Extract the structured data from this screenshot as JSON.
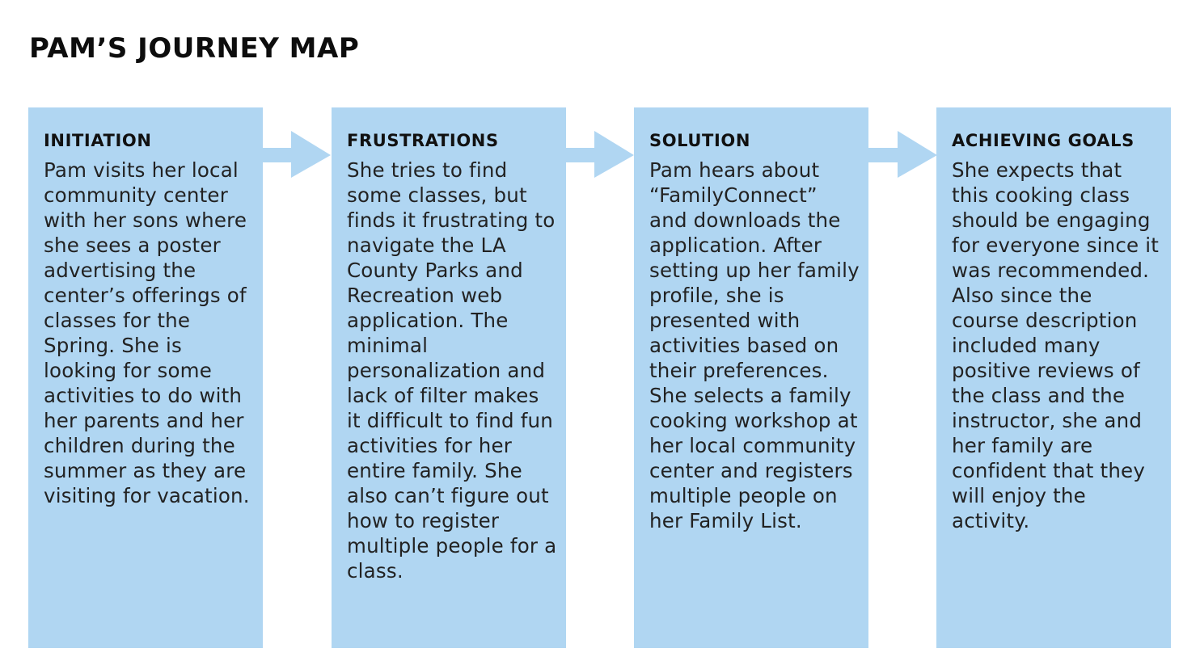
{
  "title": "PAM’S JOURNEY MAP",
  "colors": {
    "card_background": "#b0d6f2",
    "arrow": "#b0d6f2",
    "text": "#111111"
  },
  "stages": [
    {
      "heading": "INITIATION",
      "body": "Pam visits her local community center with her sons where she sees a poster advertising the center’s offerings of classes for the Spring. She is looking for some activities to do with her parents and her children during the summer as they are visiting for vacation."
    },
    {
      "heading": "FRUSTRATIONS",
      "body": "She tries to find some classes, but finds it frustrating to navigate the LA County Parks and Recreation web application. The minimal personalization and lack of filter makes it difficult to find fun activities for her entire family. She also can’t figure out how to register multiple people for a class."
    },
    {
      "heading": "SOLUTION",
      "body": "Pam hears about “FamilyConnect” and downloads the application. After setting up her family profile, she is presented with  activities based on their preferences. She selects a family cooking workshop at her local community center and registers multiple people on her Family List."
    },
    {
      "heading": "ACHIEVING GOALS",
      "body": "She expects that this cooking class should be engaging for everyone since it was recommended. Also since the course description included many positive reviews of the class and the instructor, she and her family are confident that they will enjoy the activity."
    }
  ],
  "connectors": [
    {
      "icon": "right-arrow-icon"
    },
    {
      "icon": "right-arrow-icon"
    },
    {
      "icon": "right-arrow-icon"
    }
  ]
}
